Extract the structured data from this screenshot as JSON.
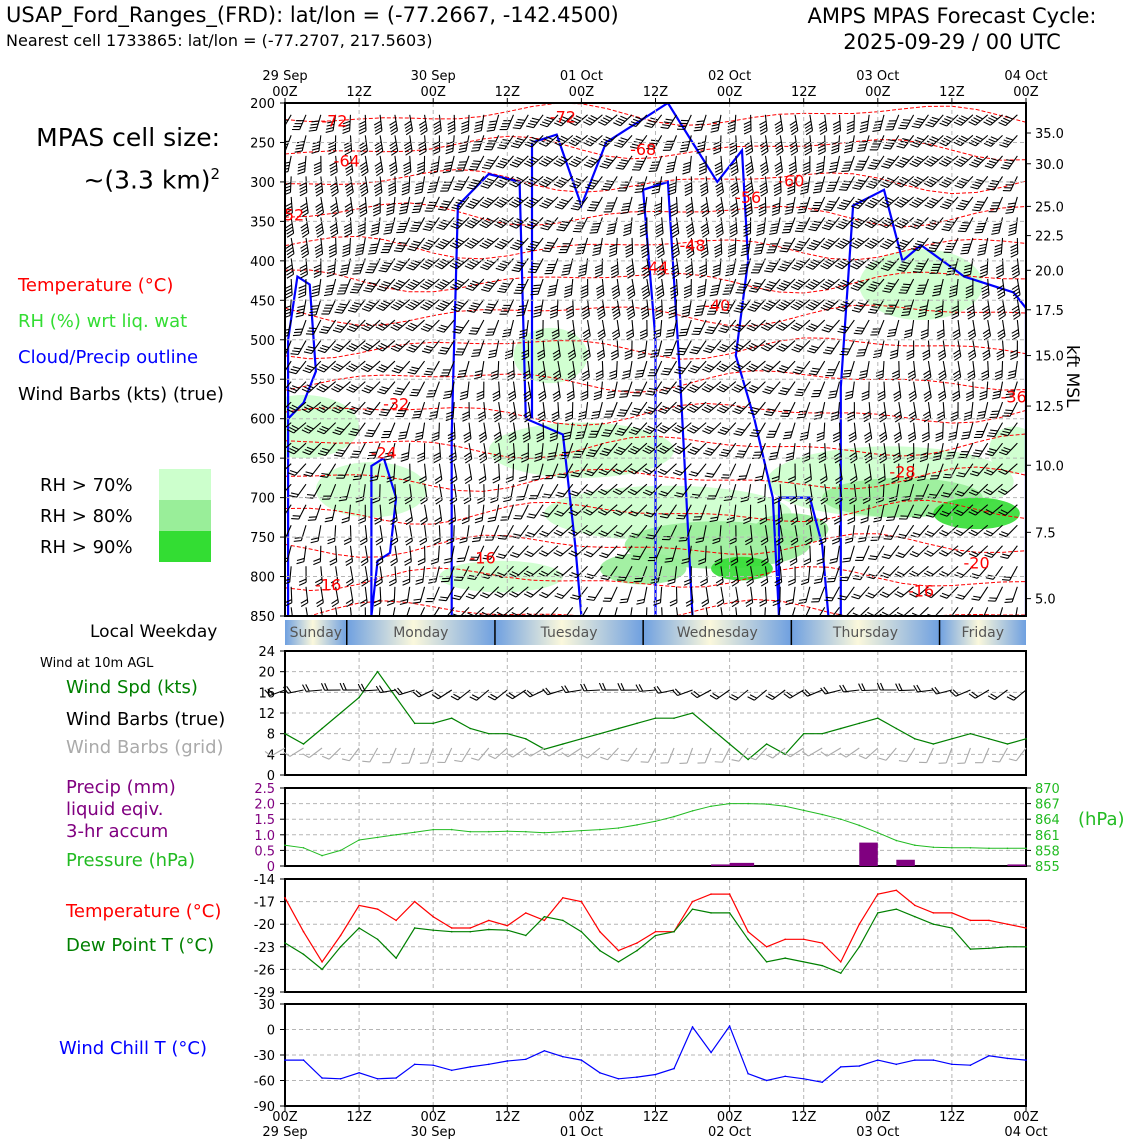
{
  "header": {
    "title_left": "USAP_Ford_Ranges_(FRD): lat/lon = (-77.2667, -142.4500)",
    "subtitle_left": "Nearest cell 1733865: lat/lon = (-77.2707, 217.5603)",
    "title_right_line1": "AMPS MPAS Forecast Cycle:",
    "title_right_line2": "2025-09-29 / 00 UTC"
  },
  "cell_size": {
    "line1": "MPAS cell size:",
    "line2": "~(3.3 km)",
    "sup": "2"
  },
  "legend": {
    "temperature": "Temperature (°C)",
    "rh": "RH (%) wrt liq. wat",
    "cloud": "Cloud/Precip outline",
    "wind": "Wind Barbs (kts) (true)",
    "rh70": "RH > 70%",
    "rh80": "RH > 80%",
    "rh90": "RH > 90%",
    "colors": {
      "temperature": "#ff0000",
      "rh": "#33dd33",
      "cloud": "#0000ff",
      "wind": "#000000",
      "rh70": "#ccffcc",
      "rh80": "#99ee99",
      "rh90": "#33dd33"
    }
  },
  "x_axis_top": [
    {
      "hour": "00Z",
      "date": "29 Sep"
    },
    {
      "hour": "12Z",
      "date": ""
    },
    {
      "hour": "00Z",
      "date": "30 Sep"
    },
    {
      "hour": "12Z",
      "date": ""
    },
    {
      "hour": "00Z",
      "date": "01 Oct"
    },
    {
      "hour": "12Z",
      "date": ""
    },
    {
      "hour": "00Z",
      "date": "02 Oct"
    },
    {
      "hour": "12Z",
      "date": ""
    },
    {
      "hour": "00Z",
      "date": "03 Oct"
    },
    {
      "hour": "12Z",
      "date": ""
    },
    {
      "hour": "00Z",
      "date": "04 Oct"
    }
  ],
  "x_axis_bottom": [
    {
      "hour": "00Z",
      "date": "29 Sep"
    },
    {
      "hour": "12Z",
      "date": ""
    },
    {
      "hour": "00Z",
      "date": "30 Sep"
    },
    {
      "hour": "12Z",
      "date": ""
    },
    {
      "hour": "00Z",
      "date": "01 Oct"
    },
    {
      "hour": "12Z",
      "date": ""
    },
    {
      "hour": "00Z",
      "date": "02 Oct"
    },
    {
      "hour": "12Z",
      "date": ""
    },
    {
      "hour": "00Z",
      "date": "03 Oct"
    },
    {
      "hour": "12Z",
      "date": ""
    },
    {
      "hour": "00Z",
      "date": "04 Oct"
    }
  ],
  "weekday_label": "Local Weekday",
  "weekdays": [
    "Sunday",
    "Monday",
    "Tuesday",
    "Wednesday",
    "Thursday",
    "Friday"
  ],
  "panel_labels": {
    "wind10m": "Wind at 10m AGL",
    "wind_spd": "Wind Spd (kts)",
    "barbs_true": "Wind Barbs (true)",
    "barbs_grid": "Wind Barbs (grid)",
    "precip1": "Precip (mm)",
    "precip2": "liquid eqiv.",
    "precip3": "3-hr accum",
    "pressure": "Pressure (hPa)",
    "hpa_unit": "(hPa)",
    "temp": "Temperature (°C)",
    "dewpt": "Dew Point T (°C)",
    "windchill": "Wind Chill T (°C)",
    "kft": "kft MSL"
  },
  "chart_data": [
    {
      "type": "heatmap",
      "description_kind": "time-height cross section",
      "y_left_label": "",
      "y_left_ticks": [
        200,
        250,
        300,
        350,
        400,
        450,
        500,
        550,
        600,
        650,
        700,
        750,
        800,
        850
      ],
      "y_right_label": "kft MSL",
      "y_right_ticks": [
        "35.0",
        "30.0",
        "25.0",
        "22.5",
        "20.0",
        "17.5",
        "15.0",
        "12.5",
        "10.0",
        "7.5",
        "5.0"
      ],
      "y_right_pressures": [
        238,
        277,
        331,
        368,
        412,
        462,
        520,
        584,
        659,
        744,
        828
      ],
      "ylim": [
        850,
        200
      ],
      "xlim_hours": [
        0,
        120
      ],
      "temperature_labels": [
        {
          "t": "-72",
          "h": 8,
          "p": 222
        },
        {
          "t": "-72",
          "h": 45,
          "p": 217
        },
        {
          "t": "-68",
          "h": 58,
          "p": 258
        },
        {
          "t": "-64",
          "h": 10,
          "p": 273
        },
        {
          "t": "-60",
          "h": 82,
          "p": 298
        },
        {
          "t": "-56",
          "h": 75,
          "p": 319
        },
        {
          "t": "-52",
          "h": 1,
          "p": 341
        },
        {
          "t": "-48",
          "h": 66,
          "p": 380
        },
        {
          "t": "-44",
          "h": 60,
          "p": 408
        },
        {
          "t": "-40",
          "h": 70,
          "p": 456
        },
        {
          "t": "-36",
          "h": 118,
          "p": 572
        },
        {
          "t": "-32",
          "h": 18,
          "p": 581
        },
        {
          "t": "-28",
          "h": 100,
          "p": 667
        },
        {
          "t": "-24",
          "h": 16,
          "p": 643
        },
        {
          "t": "-20",
          "h": 112,
          "p": 782
        },
        {
          "t": "-16",
          "h": 32,
          "p": 776
        },
        {
          "t": "-16",
          "h": 7,
          "p": 810
        },
        {
          "t": "-16",
          "h": 103,
          "p": 818
        }
      ],
      "colors": {
        "temperature": "#ff0000",
        "cloud": "#0000ff",
        "rh70": "#ccffcc",
        "rh80": "#99ee99",
        "rh90": "#33dd33"
      }
    },
    {
      "type": "line",
      "title": "",
      "ylabel": "Wind Spd (kts)",
      "ylim": [
        0,
        24
      ],
      "yticks": [
        0,
        4,
        8,
        12,
        16,
        20,
        24
      ],
      "x_hours": [
        0,
        3,
        6,
        9,
        12,
        15,
        18,
        21,
        24,
        27,
        30,
        33,
        36,
        39,
        42,
        45,
        48,
        51,
        54,
        57,
        60,
        63,
        66,
        69,
        72,
        75,
        78,
        81,
        84,
        87,
        90,
        93,
        96,
        99,
        102,
        105,
        108,
        111,
        114,
        117,
        120
      ],
      "series": [
        {
          "values": [
            8,
            6,
            9,
            12,
            15,
            20,
            15,
            10,
            10,
            11,
            9,
            8,
            8,
            7,
            5,
            6,
            7,
            8,
            9,
            10,
            11,
            11,
            12,
            9,
            6,
            3,
            6,
            4,
            8,
            8,
            9,
            10,
            11,
            9,
            7,
            6,
            7,
            8,
            7,
            6,
            7
          ],
          "color": "#008000"
        }
      ]
    },
    {
      "type": "bar",
      "ylabel": "Precip (mm)",
      "ylim": [
        0,
        2.5
      ],
      "yticks": [
        0,
        0.5,
        1.0,
        1.5,
        2.0,
        2.5
      ],
      "x_hours_start": [
        69,
        72,
        93,
        99,
        117
      ],
      "values": [
        0.05,
        0.1,
        0.75,
        0.2,
        0.05
      ],
      "color": "#800080",
      "pressure_series": {
        "name": "Pressure (hPa)",
        "ylim": [
          855,
          870
        ],
        "yticks": [
          855,
          858,
          861,
          864,
          867,
          870
        ],
        "x_hours": [
          0,
          3,
          6,
          9,
          12,
          15,
          18,
          21,
          24,
          27,
          30,
          33,
          36,
          39,
          42,
          45,
          48,
          51,
          54,
          57,
          60,
          63,
          66,
          69,
          72,
          75,
          78,
          81,
          84,
          87,
          90,
          93,
          96,
          99,
          102,
          105,
          108,
          111,
          114,
          117,
          120
        ],
        "values": [
          859,
          858.5,
          857,
          858,
          860,
          860.5,
          861,
          861.5,
          862,
          862,
          861.6,
          861.6,
          861.7,
          861.6,
          861.4,
          861.6,
          861.8,
          862,
          862.3,
          862.9,
          863.6,
          864.5,
          865.6,
          866.5,
          867,
          867,
          866.9,
          866.5,
          865.7,
          864.9,
          864,
          862.8,
          861.4,
          859.9,
          859,
          858.6,
          858.5,
          858.5,
          858.4,
          858.4,
          858.4
        ],
        "color": "#22bb22"
      }
    },
    {
      "type": "line",
      "ylim": [
        -29,
        -14
      ],
      "yticks": [
        -29,
        -26,
        -23,
        -20,
        -17,
        -14
      ],
      "x_hours": [
        0,
        3,
        6,
        9,
        12,
        15,
        18,
        21,
        24,
        27,
        30,
        33,
        36,
        39,
        42,
        45,
        48,
        51,
        54,
        57,
        60,
        63,
        66,
        69,
        72,
        75,
        78,
        81,
        84,
        87,
        90,
        93,
        96,
        99,
        102,
        105,
        108,
        111,
        114,
        117,
        120
      ],
      "series": [
        {
          "name": "Temperature (°C)",
          "color": "#ff0000",
          "values": [
            -16.5,
            -21,
            -25,
            -21.5,
            -17.5,
            -18,
            -19.5,
            -17,
            -19,
            -20.5,
            -20.5,
            -19.5,
            -20.2,
            -18.5,
            -19.5,
            -16.5,
            -17,
            -21,
            -23.5,
            -22.5,
            -21,
            -21,
            -17,
            -16,
            -16,
            -21,
            -23,
            -22,
            -22,
            -22.5,
            -25,
            -20,
            -16,
            -15.5,
            -17.5,
            -18.5,
            -18.5,
            -19.5,
            -19.5,
            -20,
            -20.5
          ]
        },
        {
          "name": "Dew Point T (°C)",
          "color": "#008000",
          "values": [
            -22.5,
            -24,
            -26,
            -23,
            -20.5,
            -22,
            -24.5,
            -20.5,
            -20.8,
            -21,
            -21,
            -20.7,
            -20.8,
            -21.5,
            -19,
            -19.5,
            -21,
            -23.5,
            -25,
            -23.5,
            -21.5,
            -21,
            -18,
            -18.5,
            -18.5,
            -22,
            -25,
            -24.5,
            -25,
            -25.5,
            -26.5,
            -23,
            -18.5,
            -18,
            -19,
            -20,
            -20.5,
            -23.3,
            -23.2,
            -23,
            -23
          ]
        }
      ]
    },
    {
      "type": "line",
      "ylim": [
        -90,
        30
      ],
      "yticks": [
        -90,
        -60,
        -30,
        0,
        30
      ],
      "x_hours": [
        0,
        3,
        6,
        9,
        12,
        15,
        18,
        21,
        24,
        27,
        30,
        33,
        36,
        39,
        42,
        45,
        48,
        51,
        54,
        57,
        60,
        63,
        66,
        69,
        72,
        75,
        78,
        81,
        84,
        87,
        90,
        93,
        96,
        99,
        102,
        105,
        108,
        111,
        114,
        117,
        120
      ],
      "series": [
        {
          "name": "Wind Chill T (°C)",
          "color": "#0000ff",
          "values": [
            -36,
            -36,
            -57,
            -58,
            -51,
            -58,
            -57,
            -41,
            -42,
            -48,
            -44,
            -41,
            -37,
            -35,
            -25,
            -32,
            -36,
            -51,
            -58,
            -56,
            -53,
            -46,
            3,
            -27,
            4,
            -52,
            -60,
            -55,
            -58,
            -62,
            -44,
            -43,
            -36,
            -41,
            -36,
            -36,
            -41,
            -42,
            -31,
            -34,
            -36
          ]
        }
      ]
    }
  ]
}
